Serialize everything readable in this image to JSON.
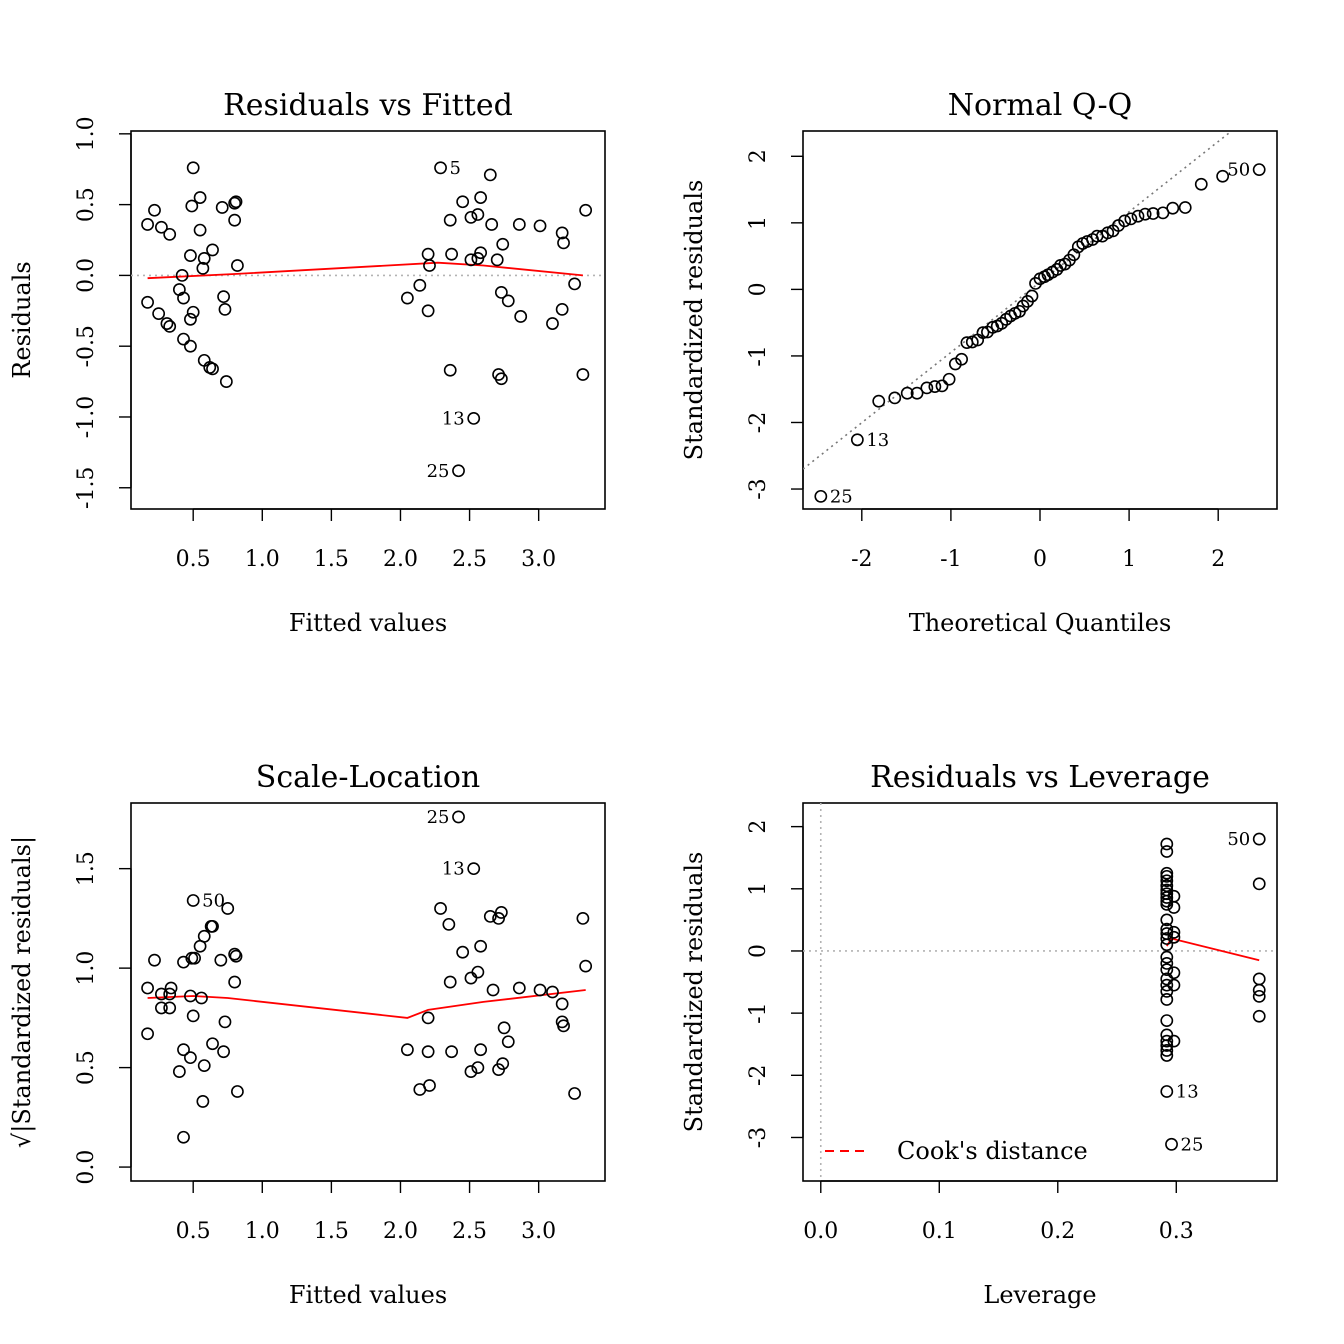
{
  "chart_data": [
    {
      "id": "rvf",
      "type": "scatter",
      "title": "Residuals vs Fitted",
      "xlabel": "Fitted values",
      "ylabel": "Residuals",
      "xlim": [
        0.05,
        3.48
      ],
      "ylim": [
        -1.65,
        1.02
      ],
      "xticks": [
        "0.5",
        "1.0",
        "1.5",
        "2.0",
        "2.5",
        "3.0"
      ],
      "yticks": [
        "-1.5",
        "-1.0",
        "-0.5",
        "0.0",
        "0.5",
        "1.0"
      ],
      "refline": {
        "type": "h",
        "value": 0,
        "style": "dotted",
        "color": "#b3b3b3"
      },
      "points": [
        [
          0.5,
          0.76
        ],
        [
          0.55,
          0.55
        ],
        [
          0.49,
          0.49
        ],
        [
          0.71,
          0.48
        ],
        [
          0.8,
          0.51
        ],
        [
          0.81,
          0.52
        ],
        [
          0.8,
          0.39
        ],
        [
          0.22,
          0.46
        ],
        [
          0.17,
          0.36
        ],
        [
          0.27,
          0.34
        ],
        [
          0.33,
          0.29
        ],
        [
          0.55,
          0.32
        ],
        [
          0.64,
          0.18
        ],
        [
          0.48,
          0.14
        ],
        [
          0.58,
          0.12
        ],
        [
          0.57,
          0.05
        ],
        [
          0.82,
          0.07
        ],
        [
          0.42,
          0.0
        ],
        [
          0.4,
          -0.1
        ],
        [
          0.43,
          -0.16
        ],
        [
          0.17,
          -0.19
        ],
        [
          0.72,
          -0.15
        ],
        [
          0.73,
          -0.24
        ],
        [
          0.5,
          -0.26
        ],
        [
          0.48,
          -0.31
        ],
        [
          0.25,
          -0.27
        ],
        [
          0.31,
          -0.34
        ],
        [
          0.33,
          -0.36
        ],
        [
          0.43,
          -0.45
        ],
        [
          0.48,
          -0.5
        ],
        [
          0.58,
          -0.6
        ],
        [
          0.62,
          -0.65
        ],
        [
          0.64,
          -0.66
        ],
        [
          0.74,
          -0.75
        ],
        [
          2.29,
          0.76
        ],
        [
          2.65,
          0.71
        ],
        [
          2.45,
          0.52
        ],
        [
          2.58,
          0.55
        ],
        [
          2.36,
          0.39
        ],
        [
          2.51,
          0.41
        ],
        [
          2.56,
          0.43
        ],
        [
          2.66,
          0.36
        ],
        [
          2.86,
          0.36
        ],
        [
          3.01,
          0.35
        ],
        [
          3.17,
          0.3
        ],
        [
          3.34,
          0.46
        ],
        [
          2.74,
          0.22
        ],
        [
          3.18,
          0.23
        ],
        [
          2.2,
          0.15
        ],
        [
          2.37,
          0.15
        ],
        [
          2.58,
          0.16
        ],
        [
          2.7,
          0.11
        ],
        [
          2.51,
          0.11
        ],
        [
          2.56,
          0.12
        ],
        [
          2.21,
          0.07
        ],
        [
          2.14,
          -0.07
        ],
        [
          2.05,
          -0.16
        ],
        [
          2.2,
          -0.25
        ],
        [
          2.73,
          -0.12
        ],
        [
          2.78,
          -0.18
        ],
        [
          2.87,
          -0.29
        ],
        [
          3.26,
          -0.06
        ],
        [
          3.17,
          -0.24
        ],
        [
          3.1,
          -0.34
        ],
        [
          3.32,
          -0.7
        ],
        [
          2.36,
          -0.67
        ],
        [
          2.71,
          -0.7
        ],
        [
          2.73,
          -0.73
        ],
        [
          2.53,
          -1.01
        ],
        [
          2.42,
          -1.38
        ]
      ],
      "labels": [
        {
          "text": "5",
          "x": 2.29,
          "y": 0.76,
          "side": "right"
        },
        {
          "text": "13",
          "x": 2.53,
          "y": -1.01,
          "side": "left"
        },
        {
          "text": "25",
          "x": 2.42,
          "y": -1.38,
          "side": "left"
        }
      ],
      "smooth": [
        [
          0.17,
          -0.02
        ],
        [
          0.8,
          0.01
        ],
        [
          2.27,
          0.09
        ],
        [
          2.6,
          0.07
        ],
        [
          3.32,
          0.0
        ]
      ]
    },
    {
      "id": "qq",
      "type": "scatter",
      "title": "Normal Q-Q",
      "xlabel": "Theoretical Quantiles",
      "ylabel": "Standardized residuals",
      "xlim": [
        -2.66,
        2.66
      ],
      "ylim": [
        -3.3,
        2.38
      ],
      "xticks": [
        "-2",
        "-1",
        "0",
        "1",
        "2"
      ],
      "yticks": [
        "-3",
        "-2",
        "-1",
        "0",
        "1",
        "2"
      ],
      "refline": {
        "type": "ab",
        "x1": -2.66,
        "y1": -2.7,
        "x2": 2.15,
        "y2": 2.38,
        "style": "dotted",
        "color": "#777777"
      },
      "points": [
        [
          -2.46,
          -3.11
        ],
        [
          -2.05,
          -2.26
        ],
        [
          -1.81,
          -1.68
        ],
        [
          -1.63,
          -1.63
        ],
        [
          -1.49,
          -1.56
        ],
        [
          -1.38,
          -1.56
        ],
        [
          -1.27,
          -1.48
        ],
        [
          -1.18,
          -1.46
        ],
        [
          -1.1,
          -1.45
        ],
        [
          -1.02,
          -1.35
        ],
        [
          -0.95,
          -1.12
        ],
        [
          -0.88,
          -1.05
        ],
        [
          -0.82,
          -0.8
        ],
        [
          -0.76,
          -0.79
        ],
        [
          -0.7,
          -0.76
        ],
        [
          -0.64,
          -0.65
        ],
        [
          -0.59,
          -0.64
        ],
        [
          -0.53,
          -0.57
        ],
        [
          -0.48,
          -0.55
        ],
        [
          -0.43,
          -0.51
        ],
        [
          -0.38,
          -0.45
        ],
        [
          -0.33,
          -0.4
        ],
        [
          -0.28,
          -0.36
        ],
        [
          -0.23,
          -0.33
        ],
        [
          -0.19,
          -0.25
        ],
        [
          -0.14,
          -0.18
        ],
        [
          -0.09,
          -0.1
        ],
        [
          -0.05,
          0.09
        ],
        [
          0.0,
          0.16
        ],
        [
          0.05,
          0.19
        ],
        [
          0.09,
          0.22
        ],
        [
          0.14,
          0.26
        ],
        [
          0.19,
          0.3
        ],
        [
          0.23,
          0.36
        ],
        [
          0.28,
          0.38
        ],
        [
          0.33,
          0.44
        ],
        [
          0.38,
          0.52
        ],
        [
          0.43,
          0.64
        ],
        [
          0.48,
          0.69
        ],
        [
          0.53,
          0.72
        ],
        [
          0.59,
          0.75
        ],
        [
          0.64,
          0.8
        ],
        [
          0.7,
          0.8
        ],
        [
          0.76,
          0.85
        ],
        [
          0.82,
          0.88
        ],
        [
          0.88,
          0.96
        ],
        [
          0.95,
          1.03
        ],
        [
          1.02,
          1.06
        ],
        [
          1.1,
          1.1
        ],
        [
          1.18,
          1.13
        ],
        [
          1.27,
          1.14
        ],
        [
          1.38,
          1.15
        ],
        [
          1.49,
          1.22
        ],
        [
          1.63,
          1.23
        ],
        [
          1.81,
          1.58
        ],
        [
          2.05,
          1.7
        ],
        [
          2.46,
          1.8
        ]
      ],
      "labels": [
        {
          "text": "50",
          "x": 2.46,
          "y": 1.8,
          "side": "left"
        },
        {
          "text": "13",
          "x": -2.05,
          "y": -2.26,
          "side": "right"
        },
        {
          "text": "25",
          "x": -2.46,
          "y": -3.11,
          "side": "right"
        }
      ],
      "smooth": []
    },
    {
      "id": "sl",
      "type": "scatter",
      "title": "Scale-Location",
      "xlabel": "Fitted values",
      "ylabel": "√|Standardized residuals|",
      "xlim": [
        0.05,
        3.48
      ],
      "ylim": [
        -0.07,
        1.83
      ],
      "xticks": [
        "0.5",
        "1.0",
        "1.5",
        "2.0",
        "2.5",
        "3.0"
      ],
      "yticks": [
        "0.0",
        "0.5",
        "1.0",
        "1.5"
      ],
      "refline": null,
      "points": [
        [
          0.5,
          1.34
        ],
        [
          0.75,
          1.3
        ],
        [
          0.63,
          1.21
        ],
        [
          0.64,
          1.21
        ],
        [
          0.58,
          1.16
        ],
        [
          0.55,
          1.11
        ],
        [
          0.8,
          1.07
        ],
        [
          0.81,
          1.06
        ],
        [
          0.49,
          1.05
        ],
        [
          0.51,
          1.05
        ],
        [
          0.7,
          1.04
        ],
        [
          0.22,
          1.04
        ],
        [
          0.43,
          1.03
        ],
        [
          0.8,
          0.93
        ],
        [
          0.17,
          0.9
        ],
        [
          0.34,
          0.9
        ],
        [
          0.27,
          0.87
        ],
        [
          0.33,
          0.87
        ],
        [
          0.48,
          0.86
        ],
        [
          0.56,
          0.85
        ],
        [
          0.27,
          0.8
        ],
        [
          0.33,
          0.8
        ],
        [
          0.5,
          0.76
        ],
        [
          0.73,
          0.73
        ],
        [
          0.17,
          0.67
        ],
        [
          0.64,
          0.62
        ],
        [
          0.43,
          0.59
        ],
        [
          0.72,
          0.58
        ],
        [
          0.48,
          0.55
        ],
        [
          0.58,
          0.51
        ],
        [
          0.4,
          0.48
        ],
        [
          0.82,
          0.38
        ],
        [
          0.57,
          0.33
        ],
        [
          0.43,
          0.15
        ],
        [
          2.42,
          1.76
        ],
        [
          2.53,
          1.5
        ],
        [
          2.29,
          1.3
        ],
        [
          2.73,
          1.28
        ],
        [
          2.65,
          1.26
        ],
        [
          2.71,
          1.25
        ],
        [
          2.35,
          1.22
        ],
        [
          3.32,
          1.25
        ],
        [
          2.58,
          1.11
        ],
        [
          2.45,
          1.08
        ],
        [
          3.34,
          1.01
        ],
        [
          2.56,
          0.98
        ],
        [
          2.51,
          0.95
        ],
        [
          2.36,
          0.93
        ],
        [
          2.86,
          0.9
        ],
        [
          3.01,
          0.89
        ],
        [
          2.67,
          0.89
        ],
        [
          3.1,
          0.88
        ],
        [
          3.17,
          0.82
        ],
        [
          2.2,
          0.75
        ],
        [
          2.75,
          0.7
        ],
        [
          3.17,
          0.73
        ],
        [
          3.18,
          0.71
        ],
        [
          2.78,
          0.63
        ],
        [
          2.05,
          0.59
        ],
        [
          2.2,
          0.58
        ],
        [
          2.37,
          0.58
        ],
        [
          2.58,
          0.59
        ],
        [
          2.74,
          0.52
        ],
        [
          2.56,
          0.5
        ],
        [
          2.51,
          0.48
        ],
        [
          2.71,
          0.49
        ],
        [
          2.21,
          0.41
        ],
        [
          2.14,
          0.39
        ],
        [
          3.26,
          0.37
        ]
      ],
      "labels": [
        {
          "text": "50",
          "x": 0.5,
          "y": 1.34,
          "side": "right"
        },
        {
          "text": "25",
          "x": 2.42,
          "y": 1.76,
          "side": "left"
        },
        {
          "text": "13",
          "x": 2.53,
          "y": 1.5,
          "side": "left"
        }
      ],
      "smooth": [
        [
          0.17,
          0.85
        ],
        [
          0.5,
          0.86
        ],
        [
          0.75,
          0.85
        ],
        [
          2.05,
          0.75
        ],
        [
          2.2,
          0.79
        ],
        [
          2.6,
          0.83
        ],
        [
          3.34,
          0.89
        ]
      ]
    },
    {
      "id": "rvl",
      "type": "scatter",
      "title": "Residuals vs Leverage",
      "xlabel": "Leverage",
      "ylabel": "Standardized residuals",
      "xlim": [
        -0.015,
        0.385
      ],
      "ylim": [
        -3.7,
        2.38
      ],
      "xticks": [
        "0.0",
        "0.1",
        "0.2",
        "0.3"
      ],
      "yticks": [
        "-3",
        "-2",
        "-1",
        "0",
        "1",
        "2"
      ],
      "refline": [
        {
          "type": "h",
          "value": 0,
          "style": "dotted",
          "color": "#b3b3b3"
        },
        {
          "type": "v",
          "value": 0,
          "style": "dotted",
          "color": "#b3b3b3"
        }
      ],
      "points": [
        [
          0.292,
          1.72
        ],
        [
          0.292,
          1.6
        ],
        [
          0.292,
          1.25
        ],
        [
          0.292,
          1.2
        ],
        [
          0.292,
          1.13
        ],
        [
          0.292,
          1.05
        ],
        [
          0.292,
          0.98
        ],
        [
          0.292,
          0.92
        ],
        [
          0.292,
          0.86
        ],
        [
          0.292,
          0.8
        ],
        [
          0.292,
          0.75
        ],
        [
          0.292,
          0.5
        ],
        [
          0.292,
          0.35
        ],
        [
          0.292,
          0.28
        ],
        [
          0.292,
          0.2
        ],
        [
          0.292,
          0.1
        ],
        [
          0.292,
          -0.1
        ],
        [
          0.292,
          -0.2
        ],
        [
          0.292,
          -0.3
        ],
        [
          0.292,
          -0.45
        ],
        [
          0.292,
          -0.55
        ],
        [
          0.292,
          -0.65
        ],
        [
          0.292,
          -0.78
        ],
        [
          0.292,
          -1.12
        ],
        [
          0.292,
          -1.35
        ],
        [
          0.292,
          -1.45
        ],
        [
          0.292,
          -1.52
        ],
        [
          0.292,
          -1.6
        ],
        [
          0.292,
          -1.68
        ],
        [
          0.292,
          -2.26
        ],
        [
          0.298,
          0.88
        ],
        [
          0.298,
          0.7
        ],
        [
          0.298,
          0.3
        ],
        [
          0.298,
          0.22
        ],
        [
          0.298,
          -0.35
        ],
        [
          0.298,
          -0.55
        ],
        [
          0.298,
          -1.45
        ],
        [
          0.296,
          -3.11
        ],
        [
          0.37,
          1.8
        ],
        [
          0.37,
          1.08
        ],
        [
          0.37,
          -0.45
        ],
        [
          0.37,
          -0.63
        ],
        [
          0.37,
          -0.73
        ],
        [
          0.37,
          -1.05
        ]
      ],
      "labels": [
        {
          "text": "50",
          "x": 0.37,
          "y": 1.8,
          "side": "left"
        },
        {
          "text": "13",
          "x": 0.292,
          "y": -2.26,
          "side": "right"
        },
        {
          "text": "25",
          "x": 0.296,
          "y": -3.11,
          "side": "right"
        }
      ],
      "smooth": [
        [
          0.292,
          0.08
        ],
        [
          0.296,
          0.2
        ],
        [
          0.37,
          -0.15
        ]
      ],
      "legend": {
        "text": "Cook's distance",
        "position": "bottom-left",
        "color": "#ff0000",
        "style": "dashed"
      }
    }
  ]
}
